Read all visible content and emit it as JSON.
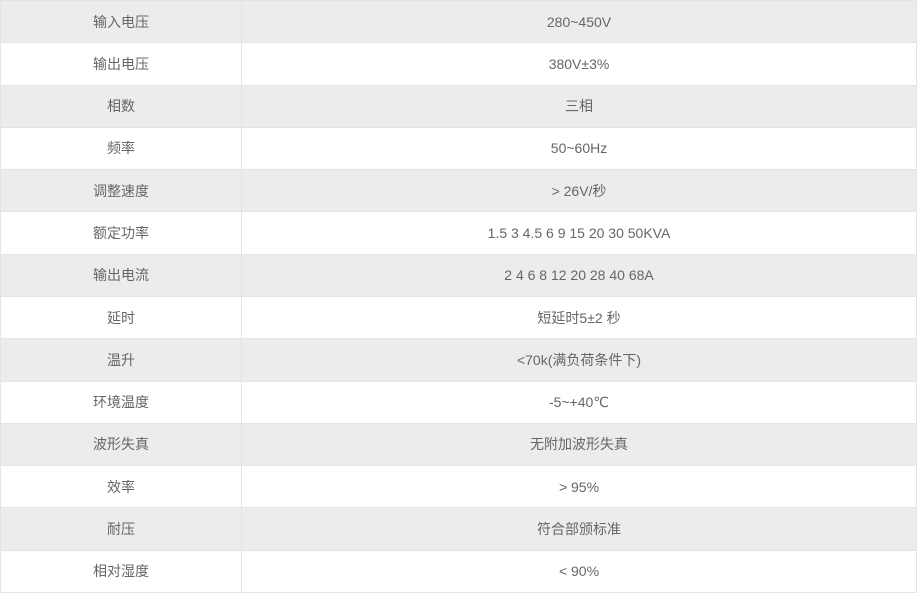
{
  "colors": {
    "stripe": "#ececec",
    "border": "#e4e4e4",
    "text": "#666666",
    "background": "#ffffff"
  },
  "table": {
    "rows": [
      {
        "label": "输入电压",
        "value": "280~450V"
      },
      {
        "label": "输出电压",
        "value": "380V±3%"
      },
      {
        "label": "相数",
        "value": "三相"
      },
      {
        "label": "频率",
        "value": "50~60Hz"
      },
      {
        "label": "调整速度",
        "value": "> 26V/秒"
      },
      {
        "label": "额定功率",
        "value": "1.5 3 4.5 6 9 15 20 30 50KVA"
      },
      {
        "label": "输出电流",
        "value": "2 4 6 8 12 20 28 40 68A"
      },
      {
        "label": "延时",
        "value": "短延时5±2 秒"
      },
      {
        "label": "温升",
        "value": "<70k(满负荷条件下)"
      },
      {
        "label": "环境温度",
        "value": "-5~+40℃"
      },
      {
        "label": "波形失真",
        "value": "无附加波形失真"
      },
      {
        "label": "效率",
        "value": "> 95%"
      },
      {
        "label": "耐压",
        "value": "符合部颁标准"
      },
      {
        "label": "相对湿度",
        "value": "< 90%"
      }
    ]
  }
}
